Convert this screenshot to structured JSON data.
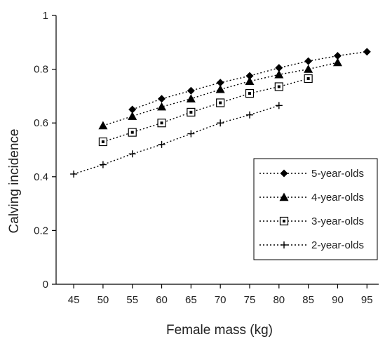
{
  "chart_data": {
    "type": "line",
    "title": "",
    "xlabel": "Female mass (kg)",
    "ylabel": "Calving incidence",
    "xlim": [
      42,
      97
    ],
    "ylim": [
      0,
      1
    ],
    "x_ticks": [
      45,
      50,
      55,
      60,
      65,
      70,
      75,
      80,
      85,
      90,
      95
    ],
    "y_ticks": [
      0,
      0.2,
      0.4,
      0.6,
      0.8,
      1
    ],
    "y_tick_labels": [
      "0",
      "0.2",
      "0.4",
      "0.6",
      "0.8",
      "1"
    ],
    "grid": false,
    "legend_position": "bottom-right",
    "line_style": "dotted",
    "colors": {
      "line": "#000000",
      "axis": "#000000",
      "legend_border": "#000000"
    },
    "series": [
      {
        "name": "5-year-olds",
        "marker": "diamond",
        "x": [
          55,
          60,
          65,
          70,
          75,
          80,
          85,
          90,
          95
        ],
        "y": [
          0.65,
          0.69,
          0.72,
          0.75,
          0.775,
          0.805,
          0.83,
          0.85,
          0.865
        ]
      },
      {
        "name": "4-year-olds",
        "marker": "triangle",
        "x": [
          50,
          55,
          60,
          65,
          70,
          75,
          80,
          85,
          90
        ],
        "y": [
          0.59,
          0.625,
          0.66,
          0.69,
          0.725,
          0.755,
          0.78,
          0.8,
          0.825
        ]
      },
      {
        "name": "3-year-olds",
        "marker": "square-open",
        "x": [
          50,
          55,
          60,
          65,
          70,
          75,
          80,
          85
        ],
        "y": [
          0.53,
          0.565,
          0.6,
          0.64,
          0.675,
          0.71,
          0.735,
          0.765
        ]
      },
      {
        "name": "2-year-olds",
        "marker": "plus",
        "x": [
          45,
          50,
          55,
          60,
          65,
          70,
          75,
          80
        ],
        "y": [
          0.41,
          0.445,
          0.485,
          0.52,
          0.56,
          0.6,
          0.63,
          0.665
        ]
      }
    ]
  }
}
